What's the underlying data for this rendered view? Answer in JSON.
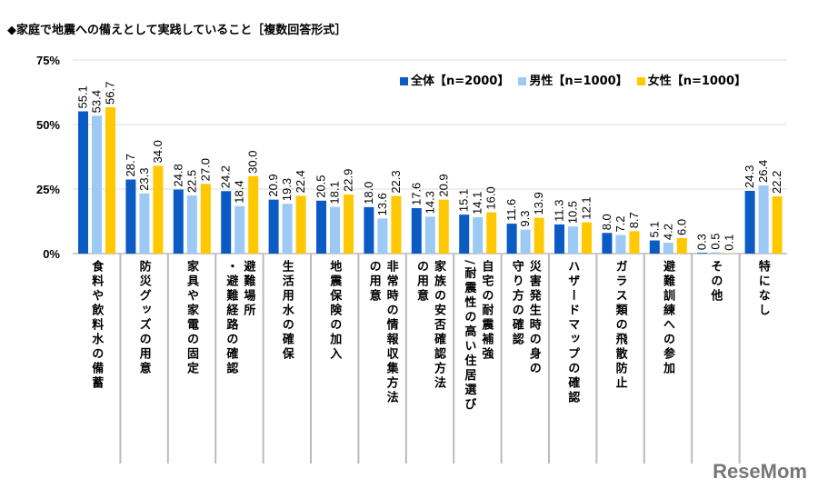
{
  "title": "◆家庭で地震への備えとして実践していること［複数回答形式］",
  "watermark": "ReseMom",
  "chart_data": {
    "type": "bar",
    "title": "◆家庭で地震への備えとして実践していること［複数回答形式］",
    "ylim": [
      0,
      75
    ],
    "yticks": [
      "0%",
      "25%",
      "50%",
      "75%"
    ],
    "legend_position": "top-right",
    "categories": [
      "食料や飲料水の備蓄",
      "防災グッズの用意",
      "家具や家電の固定",
      "避難場所\n・避難経路の確認",
      "生活用水の確保",
      "地震保険の加入",
      "非常時の情報収集方法\nの用意",
      "家族の安否確認方法\nの用意",
      "自宅の耐震補強\n/耐震性の高い住居選び",
      "災害発生時の身の\n守り方の確認",
      "ハザードマップの確認",
      "ガラス類の飛散防止",
      "避難訓練への参加",
      "その他",
      "特になし"
    ],
    "series": [
      {
        "name": "全体【n=2000】",
        "color": "#0a5bc4",
        "values": [
          55.1,
          28.7,
          24.8,
          24.2,
          20.9,
          20.5,
          18.0,
          17.6,
          15.1,
          11.6,
          11.3,
          8.0,
          5.1,
          0.3,
          24.3
        ]
      },
      {
        "name": "男性【n=1000】",
        "color": "#9dc9f5",
        "values": [
          53.4,
          23.3,
          22.5,
          18.4,
          19.3,
          18.1,
          13.6,
          14.3,
          14.1,
          9.3,
          10.5,
          7.2,
          4.2,
          0.5,
          26.4
        ]
      },
      {
        "name": "女性【n=1000】",
        "color": "#ffc800",
        "values": [
          56.7,
          34.0,
          27.0,
          30.0,
          22.4,
          22.9,
          22.3,
          20.9,
          16.0,
          13.9,
          12.1,
          8.7,
          6.0,
          0.1,
          22.2
        ]
      }
    ]
  }
}
